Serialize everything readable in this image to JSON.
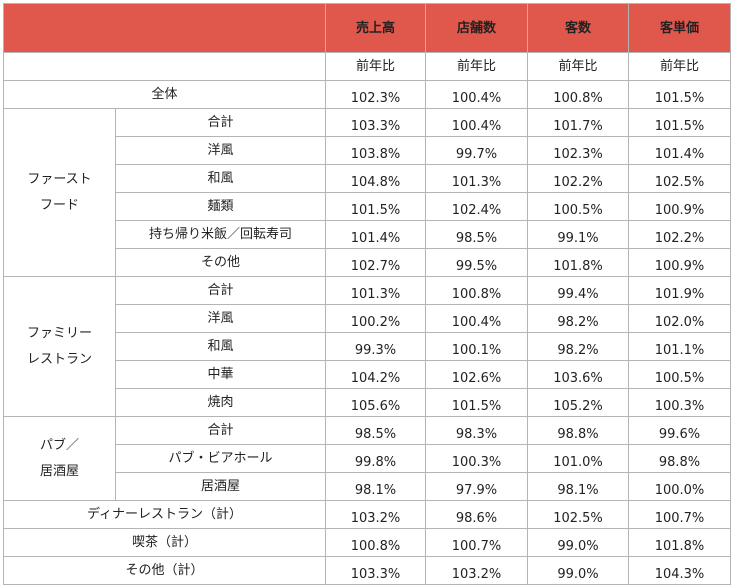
{
  "table": {
    "columns": [
      "売上高",
      "店舗数",
      "客数",
      "客単価"
    ],
    "subheader": [
      "前年比",
      "前年比",
      "前年比",
      "前年比"
    ],
    "sections": [
      {
        "label": "全体",
        "values": [
          "102.3%",
          "100.4%",
          "100.8%",
          "101.5%"
        ]
      },
      {
        "group": [
          "ファースト",
          "フード"
        ],
        "rows": [
          {
            "label": "合計",
            "values": [
              "103.3%",
              "100.4%",
              "101.7%",
              "101.5%"
            ]
          },
          {
            "label": "洋風",
            "values": [
              "103.8%",
              "99.7%",
              "102.3%",
              "101.4%"
            ]
          },
          {
            "label": "和風",
            "values": [
              "104.8%",
              "101.3%",
              "102.2%",
              "102.5%"
            ]
          },
          {
            "label": "麺類",
            "values": [
              "101.5%",
              "102.4%",
              "100.5%",
              "100.9%"
            ]
          },
          {
            "label": "持ち帰り米飯／回転寿司",
            "values": [
              "101.4%",
              "98.5%",
              "99.1%",
              "102.2%"
            ]
          },
          {
            "label": "その他",
            "values": [
              "102.7%",
              "99.5%",
              "101.8%",
              "100.9%"
            ]
          }
        ]
      },
      {
        "group": [
          "ファミリー",
          "レストラン"
        ],
        "rows": [
          {
            "label": "合計",
            "values": [
              "101.3%",
              "100.8%",
              "99.4%",
              "101.9%"
            ]
          },
          {
            "label": "洋風",
            "values": [
              "100.2%",
              "100.4%",
              "98.2%",
              "102.0%"
            ]
          },
          {
            "label": "和風",
            "values": [
              "99.3%",
              "100.1%",
              "98.2%",
              "101.1%"
            ]
          },
          {
            "label": "中華",
            "values": [
              "104.2%",
              "102.6%",
              "103.6%",
              "100.5%"
            ]
          },
          {
            "label": "焼肉",
            "values": [
              "105.6%",
              "101.5%",
              "105.2%",
              "100.3%"
            ]
          }
        ]
      },
      {
        "group": [
          "パブ／",
          "居酒屋"
        ],
        "rows": [
          {
            "label": "合計",
            "values": [
              "98.5%",
              "98.3%",
              "98.8%",
              "99.6%"
            ]
          },
          {
            "label": "パブ・ビアホール",
            "values": [
              "99.8%",
              "100.3%",
              "101.0%",
              "98.8%"
            ]
          },
          {
            "label": "居酒屋",
            "values": [
              "98.1%",
              "97.9%",
              "98.1%",
              "100.0%"
            ]
          }
        ]
      },
      {
        "label": "ディナーレストラン（計）",
        "values": [
          "103.2%",
          "98.6%",
          "102.5%",
          "100.7%"
        ]
      },
      {
        "label": "喫茶（計）",
        "values": [
          "100.8%",
          "100.7%",
          "99.0%",
          "101.8%"
        ]
      },
      {
        "label": "その他（計）",
        "values": [
          "103.3%",
          "103.2%",
          "99.0%",
          "104.3%"
        ]
      }
    ]
  }
}
